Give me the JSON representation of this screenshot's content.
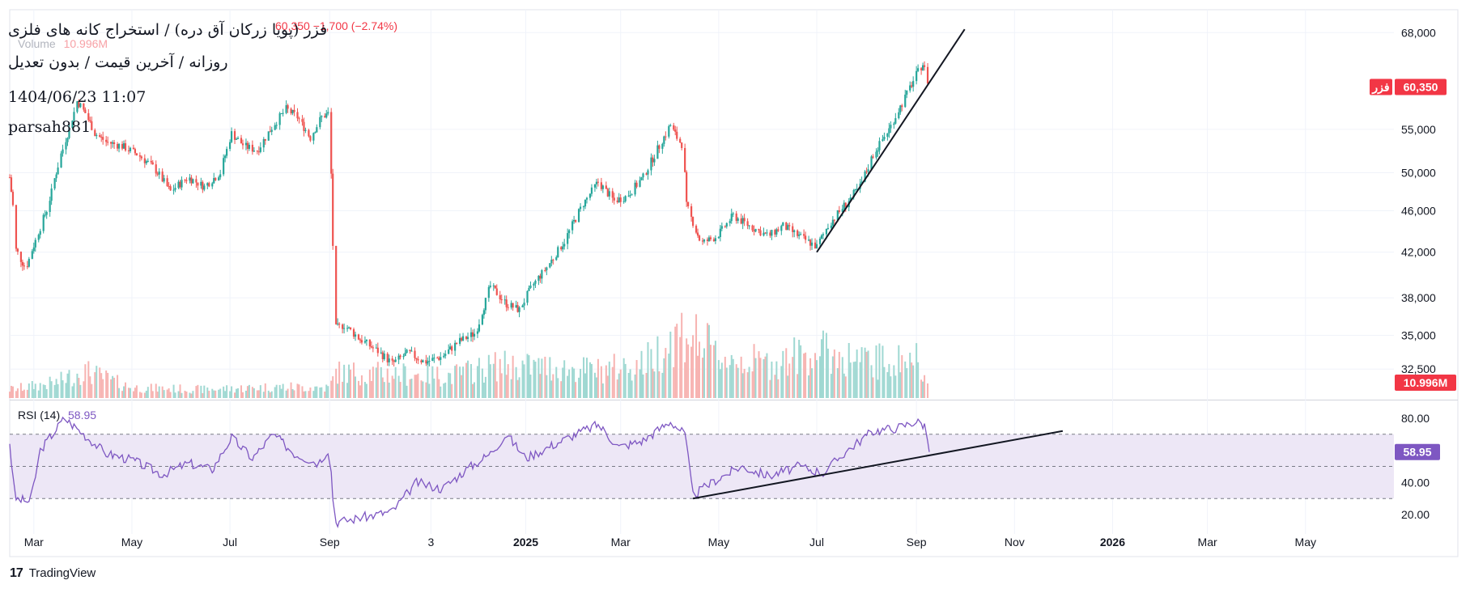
{
  "header": {
    "symbol_line": "فزر (پویا زرکان آق دره) / استخراج کانه های فلزی",
    "period_line": "روزانه / آخرین قیمت / بدون تعدیل",
    "datetime": "1404/06/23 11:07",
    "author": "parsah881",
    "quote_change": "60,350 −1,700 (−2.74%)",
    "volume_label": "Volume",
    "volume_value": "10.996M"
  },
  "badges": {
    "price_symbol": "فزر",
    "price_value": "60,350",
    "volume_value": "10.996M",
    "rsi_value": "58.95"
  },
  "rsi_legend": {
    "label": "RSI (14)",
    "value": "58.95"
  },
  "footer": {
    "brand": "TradingView",
    "logo": "17"
  },
  "colors": {
    "up": "#26a69a",
    "down": "#ef5350",
    "rsi_line": "#7e57c2",
    "rsi_band": "#ede7f6",
    "trendline": "#131722",
    "badge_red": "#f23645",
    "badge_purple": "#7e57c2",
    "grid": "#f0f3fa"
  },
  "chart_data": [
    {
      "type": "candlestick",
      "price_scale": "log",
      "ylim": [
        30500,
        71500
      ],
      "y_ticks": [
        32500,
        35000,
        38000,
        42000,
        46000,
        50000,
        55000,
        68000
      ],
      "y_tick_labels": [
        "32,500",
        "35,000",
        "38,000",
        "42,000",
        "46,000",
        "50,000",
        "55,000",
        "68,000"
      ],
      "x_ticks": [
        {
          "label": "Mar",
          "date": "2024-03-01",
          "bold": false
        },
        {
          "label": "May",
          "date": "2024-05-01",
          "bold": false
        },
        {
          "label": "Jul",
          "date": "2024-07-01",
          "bold": false
        },
        {
          "label": "Sep",
          "date": "2024-09-01",
          "bold": false
        },
        {
          "label": "3",
          "date": "2024-11-03",
          "bold": false
        },
        {
          "label": "2025",
          "date": "2025-01-01",
          "bold": true
        },
        {
          "label": "Mar",
          "date": "2025-03-01",
          "bold": false
        },
        {
          "label": "May",
          "date": "2025-05-01",
          "bold": false
        },
        {
          "label": "Jul",
          "date": "2025-07-01",
          "bold": false
        },
        {
          "label": "Sep",
          "date": "2025-09-01",
          "bold": false
        },
        {
          "label": "Nov",
          "date": "2025-11-01",
          "bold": false
        },
        {
          "label": "2026",
          "date": "2026-01-01",
          "bold": true
        },
        {
          "label": "Mar",
          "date": "2026-03-01",
          "bold": false
        },
        {
          "label": "May",
          "date": "2026-05-01",
          "bold": false
        }
      ],
      "price_path": [
        [
          "2024-02-15",
          49500
        ],
        [
          "2024-02-17",
          46500
        ],
        [
          "2024-02-19",
          42200
        ],
        [
          "2024-02-25",
          40500
        ],
        [
          "2024-03-03",
          43500
        ],
        [
          "2024-03-10",
          46500
        ],
        [
          "2024-03-17",
          51500
        ],
        [
          "2024-03-23",
          55000
        ],
        [
          "2024-03-28",
          58500
        ],
        [
          "2024-04-02",
          57000
        ],
        [
          "2024-04-08",
          54500
        ],
        [
          "2024-04-15",
          53500
        ],
        [
          "2024-04-25",
          53000
        ],
        [
          "2024-05-05",
          52000
        ],
        [
          "2024-05-15",
          50500
        ],
        [
          "2024-05-25",
          48000
        ],
        [
          "2024-06-05",
          49500
        ],
        [
          "2024-06-15",
          48500
        ],
        [
          "2024-06-25",
          50000
        ],
        [
          "2024-07-02",
          54500
        ],
        [
          "2024-07-10",
          53000
        ],
        [
          "2024-07-18",
          52500
        ],
        [
          "2024-07-28",
          55500
        ],
        [
          "2024-08-05",
          57500
        ],
        [
          "2024-08-12",
          56500
        ],
        [
          "2024-08-20",
          54000
        ],
        [
          "2024-08-27",
          56500
        ],
        [
          "2024-09-01",
          57000
        ],
        [
          "2024-09-04",
          35500
        ],
        [
          "2024-09-10",
          35800
        ],
        [
          "2024-09-20",
          34700
        ],
        [
          "2024-10-01",
          33800
        ],
        [
          "2024-10-10",
          32900
        ],
        [
          "2024-10-20",
          33700
        ],
        [
          "2024-10-30",
          33000
        ],
        [
          "2024-11-10",
          33400
        ],
        [
          "2024-11-20",
          34500
        ],
        [
          "2024-12-01",
          35200
        ],
        [
          "2024-12-10",
          39000
        ],
        [
          "2024-12-20",
          37500
        ],
        [
          "2024-12-28",
          37000
        ],
        [
          "2025-01-05",
          39000
        ],
        [
          "2025-01-15",
          40800
        ],
        [
          "2025-01-25",
          43000
        ],
        [
          "2025-02-05",
          46500
        ],
        [
          "2025-02-15",
          49000
        ],
        [
          "2025-02-25",
          47000
        ],
        [
          "2025-03-05",
          47500
        ],
        [
          "2025-03-15",
          49500
        ],
        [
          "2025-03-25",
          53000
        ],
        [
          "2025-04-01",
          55500
        ],
        [
          "2025-04-05",
          54000
        ],
        [
          "2025-04-09",
          53000
        ],
        [
          "2025-04-11",
          46500
        ],
        [
          "2025-04-20",
          42800
        ],
        [
          "2025-04-30",
          43500
        ],
        [
          "2025-05-10",
          45500
        ],
        [
          "2025-05-20",
          44500
        ],
        [
          "2025-06-01",
          43500
        ],
        [
          "2025-06-10",
          44500
        ],
        [
          "2025-06-20",
          43500
        ],
        [
          "2025-07-01",
          42500
        ],
        [
          "2025-07-08",
          44500
        ],
        [
          "2025-07-18",
          46500
        ],
        [
          "2025-07-28",
          48500
        ],
        [
          "2025-08-05",
          52000
        ],
        [
          "2025-08-15",
          55000
        ],
        [
          "2025-08-25",
          59000
        ],
        [
          "2025-09-01",
          62000
        ],
        [
          "2025-09-05",
          63500
        ],
        [
          "2025-09-09",
          60350
        ]
      ],
      "last_price": 60350,
      "last_change": -1700,
      "last_change_pct": -2.74,
      "trendline": {
        "from": [
          "2025-07-01",
          42000
        ],
        "to": [
          "2025-10-01",
          68500
        ]
      }
    },
    {
      "type": "bar",
      "name": "Volume",
      "last_value": "10.996M",
      "note": "relative daily volume, 1.0 = tallest bar",
      "volume_path": [
        [
          "2024-02-15",
          0.1
        ],
        [
          "2024-03-15",
          0.18
        ],
        [
          "2024-04-01",
          0.32
        ],
        [
          "2024-05-01",
          0.12
        ],
        [
          "2024-06-15",
          0.1
        ],
        [
          "2024-08-01",
          0.13
        ],
        [
          "2024-09-01",
          0.12
        ],
        [
          "2024-09-05",
          0.3
        ],
        [
          "2024-10-15",
          0.28
        ],
        [
          "2024-11-15",
          0.26
        ],
        [
          "2024-12-15",
          0.38
        ],
        [
          "2025-01-15",
          0.36
        ],
        [
          "2025-02-15",
          0.32
        ],
        [
          "2025-03-15",
          0.4
        ],
        [
          "2025-04-10",
          0.8
        ],
        [
          "2025-05-01",
          0.48
        ],
        [
          "2025-06-01",
          0.4
        ],
        [
          "2025-07-01",
          0.55
        ],
        [
          "2025-08-01",
          0.42
        ],
        [
          "2025-09-01",
          0.45
        ],
        [
          "2025-09-09",
          0.3
        ]
      ]
    },
    {
      "type": "line",
      "name": "RSI (14)",
      "ylim": [
        12,
        90
      ],
      "y_ticks": [
        20,
        40,
        80
      ],
      "y_tick_labels": [
        "20.00",
        "40.00",
        "80.00"
      ],
      "bands": [
        30,
        50,
        70
      ],
      "last_value": 58.95,
      "rsi_path": [
        [
          "2024-02-15",
          65
        ],
        [
          "2024-02-18",
          30
        ],
        [
          "2024-02-28",
          28
        ],
        [
          "2024-03-05",
          60
        ],
        [
          "2024-03-20",
          80
        ],
        [
          "2024-04-01",
          70
        ],
        [
          "2024-04-15",
          58
        ],
        [
          "2024-05-01",
          54
        ],
        [
          "2024-05-20",
          45
        ],
        [
          "2024-06-05",
          52
        ],
        [
          "2024-06-20",
          48
        ],
        [
          "2024-07-02",
          68
        ],
        [
          "2024-07-15",
          55
        ],
        [
          "2024-07-28",
          70
        ],
        [
          "2024-08-10",
          58
        ],
        [
          "2024-08-25",
          52
        ],
        [
          "2024-09-01",
          62
        ],
        [
          "2024-09-04",
          15
        ],
        [
          "2024-09-20",
          18
        ],
        [
          "2024-10-10",
          22
        ],
        [
          "2024-10-25",
          40
        ],
        [
          "2024-11-10",
          36
        ],
        [
          "2024-11-25",
          48
        ],
        [
          "2024-12-10",
          58
        ],
        [
          "2024-12-20",
          70
        ],
        [
          "2025-01-01",
          55
        ],
        [
          "2025-01-15",
          62
        ],
        [
          "2025-02-01",
          70
        ],
        [
          "2025-02-15",
          76
        ],
        [
          "2025-02-28",
          62
        ],
        [
          "2025-03-15",
          66
        ],
        [
          "2025-04-01",
          78
        ],
        [
          "2025-04-10",
          70
        ],
        [
          "2025-04-15",
          32
        ],
        [
          "2025-04-30",
          42
        ],
        [
          "2025-05-15",
          50
        ],
        [
          "2025-06-01",
          44
        ],
        [
          "2025-06-20",
          50
        ],
        [
          "2025-07-05",
          46
        ],
        [
          "2025-07-20",
          60
        ],
        [
          "2025-08-05",
          72
        ],
        [
          "2025-08-20",
          74
        ],
        [
          "2025-09-01",
          78
        ],
        [
          "2025-09-07",
          75
        ],
        [
          "2025-09-09",
          58.95
        ]
      ],
      "trendline": {
        "from": [
          "2025-04-15",
          30
        ],
        "to": [
          "2025-12-01",
          72
        ]
      }
    }
  ]
}
